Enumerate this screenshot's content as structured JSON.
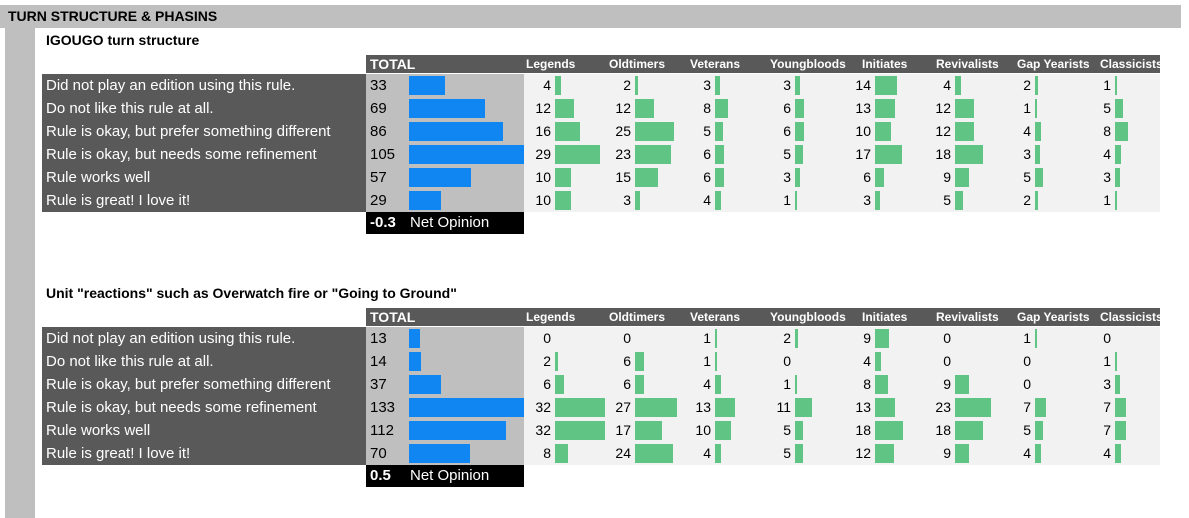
{
  "page_title": "TURN STRUCTURE & PHASINS",
  "chart_data": [
    {
      "type": "bar",
      "title": "IGOUGO turn structure",
      "total_label": "TOTAL",
      "categories": [
        "Did not play an edition using this rule.",
        "Do not like this rule at all.",
        "Rule is okay, but prefer something different",
        "Rule is okay, but needs some refinement",
        "Rule works well",
        "Rule is great! I love it!"
      ],
      "total": [
        33,
        69,
        86,
        105,
        57,
        29
      ],
      "groups": [
        "Legends",
        "Oldtimers",
        "Veterans",
        "Youngbloods",
        "Initiates",
        "Revivalists",
        "Gap Yearists",
        "Classicists"
      ],
      "series": [
        {
          "name": "Legends",
          "values": [
            4,
            12,
            16,
            29,
            10,
            10
          ]
        },
        {
          "name": "Oldtimers",
          "values": [
            2,
            12,
            25,
            23,
            15,
            3
          ]
        },
        {
          "name": "Veterans",
          "values": [
            3,
            8,
            5,
            6,
            6,
            4
          ]
        },
        {
          "name": "Youngbloods",
          "values": [
            3,
            6,
            6,
            5,
            3,
            1
          ]
        },
        {
          "name": "Initiates",
          "values": [
            14,
            13,
            10,
            17,
            6,
            3
          ]
        },
        {
          "name": "Revivalists",
          "values": [
            4,
            12,
            12,
            18,
            9,
            5
          ]
        },
        {
          "name": "Gap Yearists",
          "values": [
            2,
            1,
            4,
            3,
            5,
            2
          ]
        },
        {
          "name": "Classicists",
          "values": [
            1,
            5,
            8,
            4,
            3,
            1
          ]
        }
      ],
      "net_opinion_value": "-0.3",
      "net_opinion_label": "Net Opinion",
      "colors": {
        "total_bar": "#0f86f2",
        "group_bar": "#5fc484"
      }
    },
    {
      "type": "bar",
      "title": "Unit \"reactions\" such as Overwatch fire or \"Going to Ground\"",
      "total_label": "TOTAL",
      "categories": [
        "Did not play an edition using this rule.",
        "Do not like this rule at all.",
        "Rule is okay, but prefer something different",
        "Rule is okay, but needs some refinement",
        "Rule works well",
        "Rule is great! I love it!"
      ],
      "total": [
        13,
        14,
        37,
        133,
        112,
        70
      ],
      "groups": [
        "Legends",
        "Oldtimers",
        "Veterans",
        "Youngbloods",
        "Initiates",
        "Revivalists",
        "Gap Yearists",
        "Classicists"
      ],
      "series": [
        {
          "name": "Legends",
          "values": [
            0,
            2,
            6,
            32,
            32,
            8
          ]
        },
        {
          "name": "Oldtimers",
          "values": [
            0,
            6,
            6,
            27,
            17,
            24
          ]
        },
        {
          "name": "Veterans",
          "values": [
            1,
            1,
            4,
            13,
            10,
            4
          ]
        },
        {
          "name": "Youngbloods",
          "values": [
            2,
            0,
            1,
            11,
            5,
            5
          ]
        },
        {
          "name": "Initiates",
          "values": [
            9,
            4,
            8,
            13,
            18,
            12
          ]
        },
        {
          "name": "Revivalists",
          "values": [
            0,
            0,
            9,
            23,
            18,
            9
          ]
        },
        {
          "name": "Gap Yearists",
          "values": [
            1,
            0,
            0,
            7,
            5,
            4
          ]
        },
        {
          "name": "Classicists",
          "values": [
            0,
            1,
            3,
            7,
            7,
            4
          ]
        }
      ],
      "net_opinion_value": "0.5",
      "net_opinion_label": "Net Opinion",
      "colors": {
        "total_bar": "#0f86f2",
        "group_bar": "#5fc484"
      }
    }
  ]
}
